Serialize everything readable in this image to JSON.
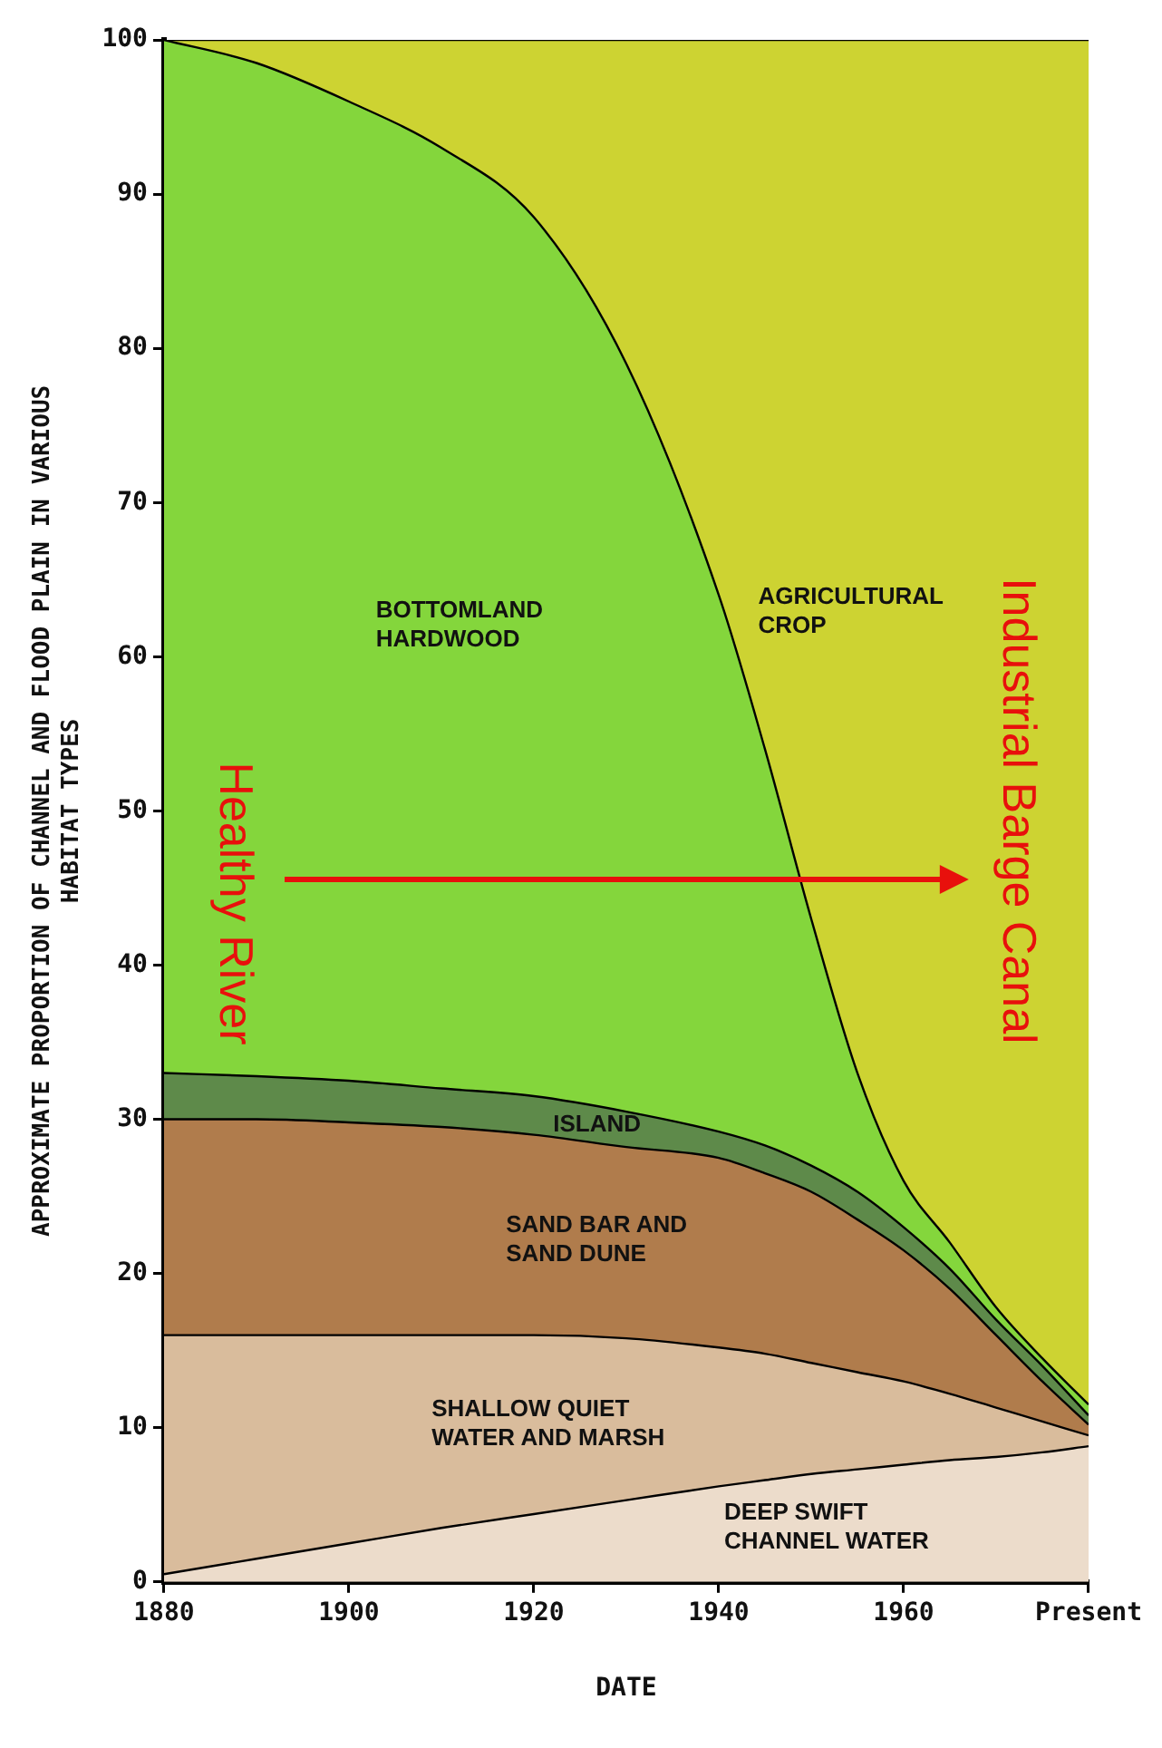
{
  "chart_data": {
    "type": "area",
    "stacked": true,
    "xlabel": "DATE",
    "ylabel": "APPROXIMATE PROPORTION OF CHANNEL AND FLOOD PLAIN IN VARIOUS HABITAT TYPES",
    "x": [
      1880,
      1890,
      1900,
      1910,
      1920,
      1930,
      1940,
      1945,
      1950,
      1955,
      1960,
      1965,
      1970,
      1975,
      1980
    ],
    "xlim": [
      1880,
      1980
    ],
    "xticks": [
      1880,
      1900,
      1920,
      1940,
      1960,
      {
        "value": 1980,
        "label": "Present"
      }
    ],
    "ylim": [
      0,
      100
    ],
    "yticks": [
      0,
      10,
      20,
      30,
      40,
      50,
      60,
      70,
      80,
      90,
      100
    ],
    "grid": false,
    "legend": false,
    "marker": "none",
    "series": [
      {
        "name": "DEEP SWIFT CHANNEL WATER",
        "color": "#ecdccb",
        "values": [
          0.5,
          1.5,
          2.5,
          3.5,
          4.4,
          5.3,
          6.2,
          6.6,
          7.0,
          7.3,
          7.6,
          7.9,
          8.1,
          8.4,
          8.8
        ]
      },
      {
        "name": "SHALLOW QUIET WATER AND MARSH",
        "color": "#d9bc9c",
        "values": [
          15.5,
          14.5,
          13.5,
          12.5,
          11.6,
          10.5,
          9.0,
          8.2,
          7.2,
          6.3,
          5.4,
          4.3,
          3.2,
          2.0,
          0.7
        ]
      },
      {
        "name": "SAND BAR AND SAND DUNE",
        "color": "#b07c4c",
        "values": [
          14,
          14,
          13.8,
          13.5,
          13,
          12.4,
          12.3,
          11.7,
          11.1,
          9.9,
          8.5,
          6.8,
          4.7,
          2.6,
          0.7
        ]
      },
      {
        "name": "ISLAND",
        "color": "#5e8a4a",
        "values": [
          3,
          2.8,
          2.7,
          2.5,
          2.5,
          2.3,
          1.7,
          1.8,
          1.7,
          1.8,
          1.5,
          1.3,
          1.0,
          1.0,
          0.6
        ]
      },
      {
        "name": "BOTTOMLAND HARDWOOD",
        "color": "#84d63c",
        "values": [
          67,
          65.7,
          63.5,
          61,
          57,
          48.5,
          34.8,
          25.7,
          16,
          7.7,
          3,
          1.7,
          0.8,
          0.5,
          0.7
        ]
      },
      {
        "name": "AGRICULTURAL CROP",
        "color": "#cdd332",
        "values": [
          0,
          1.5,
          4,
          7,
          11.5,
          21,
          36,
          46,
          57,
          67,
          74,
          78,
          82.2,
          85.5,
          88.5
        ]
      }
    ],
    "annotations": [
      "Healthy River",
      "Industrial Barge Canal"
    ]
  }
}
